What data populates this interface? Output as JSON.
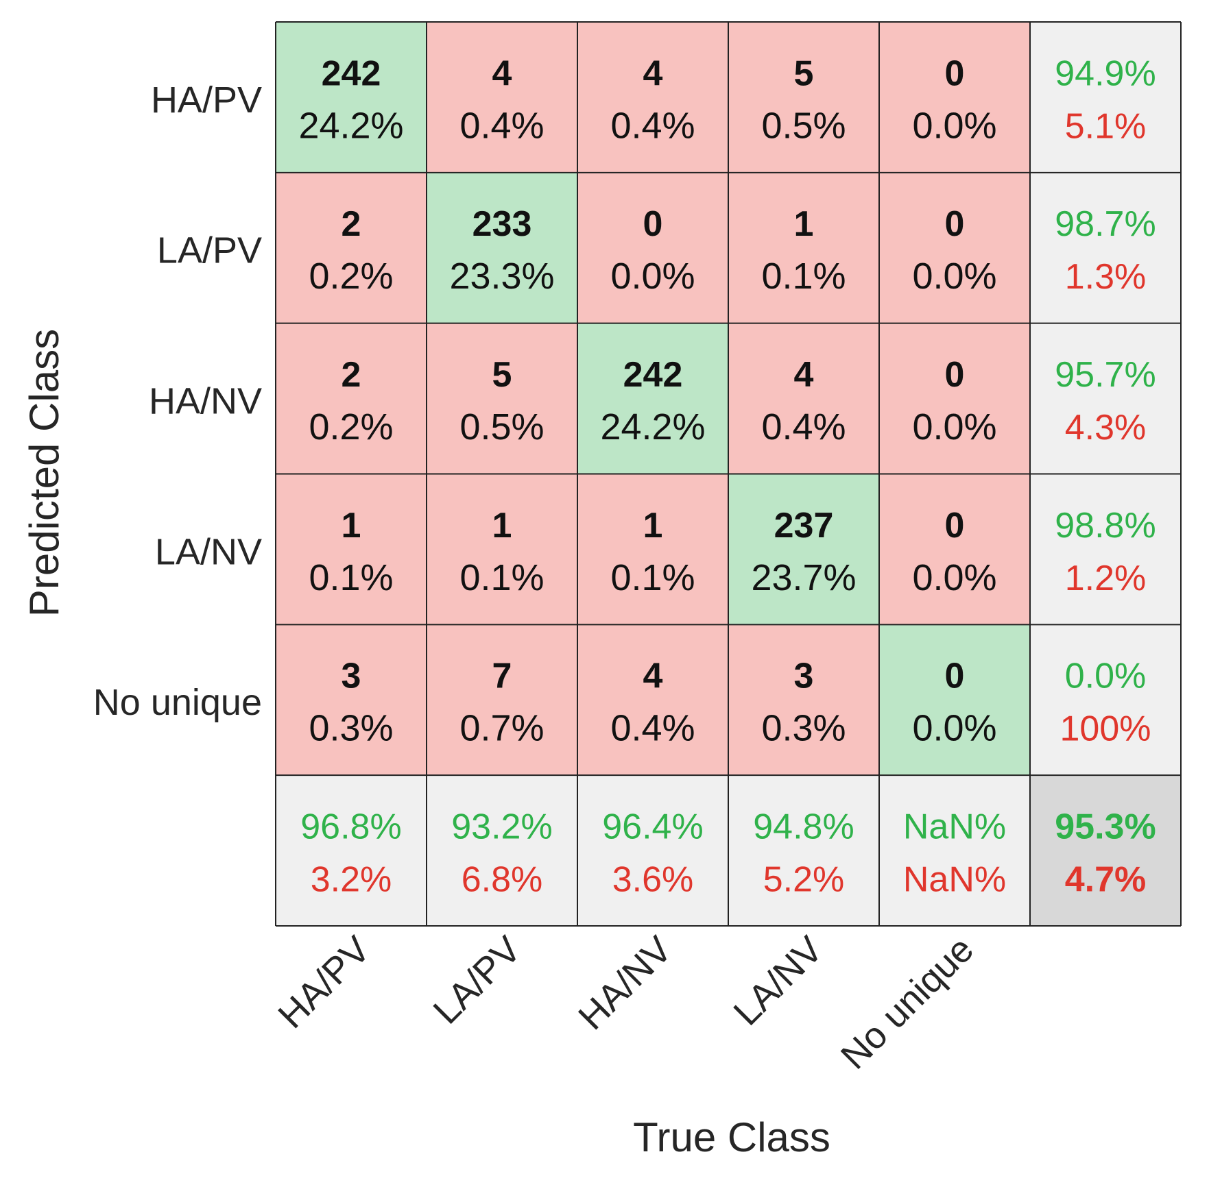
{
  "chart_data": {
    "type": "heatmap",
    "subtype": "confusion-matrix",
    "xlabel": "True Class",
    "ylabel": "Predicted Class",
    "classes": [
      "HA/PV",
      "LA/PV",
      "HA/NV",
      "LA/NV",
      "No unique"
    ],
    "counts": [
      [
        242,
        4,
        4,
        5,
        0
      ],
      [
        2,
        233,
        0,
        1,
        0
      ],
      [
        2,
        5,
        242,
        4,
        0
      ],
      [
        1,
        1,
        1,
        237,
        0
      ],
      [
        3,
        7,
        4,
        3,
        0
      ]
    ],
    "percents": [
      [
        "24.2%",
        "0.4%",
        "0.4%",
        "0.5%",
        "0.0%"
      ],
      [
        "0.2%",
        "23.3%",
        "0.0%",
        "0.1%",
        "0.0%"
      ],
      [
        "0.2%",
        "0.5%",
        "24.2%",
        "0.4%",
        "0.0%"
      ],
      [
        "0.1%",
        "0.1%",
        "0.1%",
        "23.7%",
        "0.0%"
      ],
      [
        "0.3%",
        "0.7%",
        "0.4%",
        "0.3%",
        "0.0%"
      ]
    ],
    "row_summary": [
      {
        "correct": "94.9%",
        "incorrect": "5.1%"
      },
      {
        "correct": "98.7%",
        "incorrect": "1.3%"
      },
      {
        "correct": "95.7%",
        "incorrect": "4.3%"
      },
      {
        "correct": "98.8%",
        "incorrect": "1.2%"
      },
      {
        "correct": "0.0%",
        "incorrect": "100%"
      }
    ],
    "col_summary": [
      {
        "correct": "96.8%",
        "incorrect": "3.2%"
      },
      {
        "correct": "93.2%",
        "incorrect": "6.8%"
      },
      {
        "correct": "96.4%",
        "incorrect": "3.6%"
      },
      {
        "correct": "94.8%",
        "incorrect": "5.2%"
      },
      {
        "correct": "NaN%",
        "incorrect": "NaN%"
      }
    ],
    "overall": {
      "correct": "95.3%",
      "incorrect": "4.7%"
    }
  },
  "colors": {
    "diagonal_fill": "#bde6c7",
    "offdiag_fill": "#f8c2bf",
    "summary_fill": "#f0f0f0",
    "overall_fill": "#d8d8d8",
    "correct_text": "#2fb24a",
    "incorrect_text": "#e0362c",
    "cell_text": "#111111",
    "border": "#222222",
    "label_text": "#262626"
  }
}
